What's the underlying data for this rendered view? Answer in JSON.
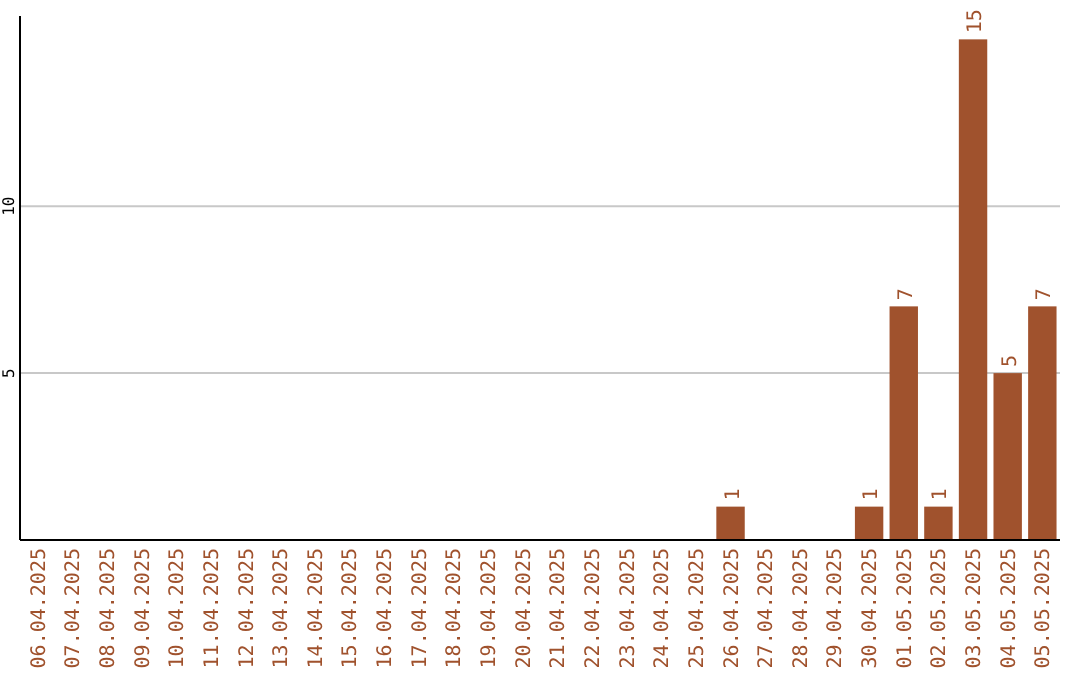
{
  "chart_data": {
    "type": "bar",
    "categories": [
      "06.04.2025",
      "07.04.2025",
      "08.04.2025",
      "09.04.2025",
      "10.04.2025",
      "11.04.2025",
      "12.04.2025",
      "13.04.2025",
      "14.04.2025",
      "15.04.2025",
      "16.04.2025",
      "17.04.2025",
      "18.04.2025",
      "19.04.2025",
      "20.04.2025",
      "21.04.2025",
      "22.04.2025",
      "23.04.2025",
      "24.04.2025",
      "25.04.2025",
      "26.04.2025",
      "27.04.2025",
      "28.04.2025",
      "29.04.2025",
      "30.04.2025",
      "01.05.2025",
      "02.05.2025",
      "03.05.2025",
      "04.05.2025",
      "05.05.2025"
    ],
    "values": [
      0,
      0,
      0,
      0,
      0,
      0,
      0,
      0,
      0,
      0,
      0,
      0,
      0,
      0,
      0,
      0,
      0,
      0,
      0,
      0,
      1,
      0,
      0,
      0,
      1,
      7,
      1,
      15,
      5,
      7
    ],
    "value_labels": [
      null,
      null,
      null,
      null,
      null,
      null,
      null,
      null,
      null,
      null,
      null,
      null,
      null,
      null,
      null,
      null,
      null,
      null,
      null,
      null,
      "1",
      null,
      null,
      null,
      "1",
      "7",
      "1",
      "15",
      "5",
      "7"
    ],
    "color": "#a0522d",
    "ylim": [
      0,
      15.7
    ],
    "yticks": [
      5,
      10
    ],
    "grid": "y"
  }
}
